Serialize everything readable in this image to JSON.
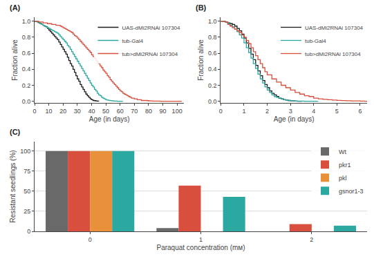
{
  "chart_data": [
    {
      "type": "step",
      "title": "(A)",
      "xlabel": "Age (in days)",
      "ylabel": "Fraction alive",
      "xlim": [
        0,
        105
      ],
      "ylim": [
        -0.02,
        1.05
      ],
      "xticks": [
        0,
        10,
        20,
        30,
        40,
        50,
        60,
        70,
        80,
        90,
        100
      ],
      "yticks": [
        {
          "value": 0,
          "label": "0.0"
        },
        0.2,
        0.4,
        0.6,
        0.8,
        {
          "value": 1,
          "label": "1.0"
        }
      ],
      "grid": false,
      "legend": "upper right",
      "series": [
        {
          "name": "UAS-dMi2RNAi 107304",
          "color": "#1a1a1a",
          "x": [
            0,
            1,
            2,
            3,
            4,
            5,
            6,
            7,
            8,
            9,
            10,
            11,
            12,
            13,
            14,
            15,
            16,
            17,
            18,
            19,
            20,
            21,
            22,
            23,
            24,
            25,
            26,
            27,
            28,
            29,
            30,
            31,
            32,
            33,
            34,
            35,
            36,
            37,
            38,
            39,
            40,
            41,
            42,
            43,
            44,
            45
          ],
          "values": [
            1.0,
            1.0,
            0.99,
            0.98,
            0.97,
            0.96,
            0.95,
            0.94,
            0.93,
            0.91,
            0.89,
            0.87,
            0.85,
            0.83,
            0.81,
            0.79,
            0.77,
            0.74,
            0.71,
            0.68,
            0.65,
            0.62,
            0.59,
            0.55,
            0.51,
            0.47,
            0.44,
            0.4,
            0.36,
            0.32,
            0.28,
            0.25,
            0.21,
            0.18,
            0.15,
            0.12,
            0.09,
            0.07,
            0.05,
            0.03,
            0.02,
            0.01,
            0.008,
            0.004,
            0.002,
            0.0
          ]
        },
        {
          "name": "tub-Gal4",
          "color": "#2ba8a0",
          "x": [
            0,
            1,
            2,
            3,
            4,
            5,
            6,
            7,
            8,
            9,
            10,
            11,
            12,
            13,
            14,
            15,
            16,
            17,
            18,
            19,
            20,
            21,
            22,
            23,
            24,
            25,
            26,
            27,
            28,
            29,
            30,
            31,
            32,
            33,
            34,
            35,
            36,
            37,
            38,
            39,
            40,
            41,
            42,
            43,
            44,
            45,
            46,
            47,
            48,
            49,
            50,
            51,
            52,
            53,
            54,
            55,
            56,
            57,
            58,
            59,
            60,
            61,
            62
          ],
          "values": [
            1.0,
            1.0,
            0.99,
            0.98,
            0.97,
            0.96,
            0.95,
            0.94,
            0.93,
            0.92,
            0.91,
            0.9,
            0.89,
            0.88,
            0.87,
            0.86,
            0.85,
            0.83,
            0.81,
            0.79,
            0.77,
            0.75,
            0.73,
            0.7,
            0.68,
            0.65,
            0.62,
            0.59,
            0.56,
            0.53,
            0.5,
            0.47,
            0.44,
            0.41,
            0.38,
            0.35,
            0.32,
            0.29,
            0.26,
            0.23,
            0.2,
            0.18,
            0.15,
            0.13,
            0.1,
            0.08,
            0.07,
            0.05,
            0.04,
            0.03,
            0.02,
            0.015,
            0.012,
            0.009,
            0.007,
            0.005,
            0.003,
            0.002,
            0.001,
            0.001,
            0.0,
            0.0,
            0.0
          ]
        },
        {
          "name": "tub>dMi2RNAi 107304",
          "color": "#d94f3d",
          "x": [
            0,
            1,
            2,
            3,
            4,
            5,
            6,
            7,
            8,
            9,
            10,
            11,
            12,
            13,
            14,
            15,
            16,
            17,
            18,
            19,
            20,
            21,
            22,
            23,
            24,
            25,
            26,
            27,
            28,
            29,
            30,
            31,
            32,
            33,
            34,
            35,
            36,
            37,
            38,
            39,
            40,
            41,
            42,
            43,
            44,
            45,
            46,
            47,
            48,
            49,
            50,
            51,
            52,
            53,
            54,
            55,
            56,
            57,
            58,
            59,
            60,
            61,
            62,
            63,
            64,
            65,
            66,
            67,
            68,
            69,
            70,
            71,
            72,
            73,
            74,
            75,
            76,
            77,
            78,
            79,
            80,
            81,
            82,
            83,
            84,
            85,
            86,
            87,
            88,
            89,
            90,
            91,
            92,
            93,
            94,
            95,
            96,
            97,
            98,
            99,
            100,
            101,
            102,
            103
          ],
          "values": [
            1.0,
            1.0,
            1.0,
            0.99,
            0.99,
            0.99,
            0.98,
            0.98,
            0.98,
            0.97,
            0.97,
            0.97,
            0.96,
            0.96,
            0.96,
            0.95,
            0.95,
            0.95,
            0.94,
            0.93,
            0.92,
            0.91,
            0.9,
            0.89,
            0.88,
            0.87,
            0.86,
            0.84,
            0.82,
            0.81,
            0.79,
            0.77,
            0.75,
            0.73,
            0.71,
            0.69,
            0.67,
            0.65,
            0.63,
            0.61,
            0.58,
            0.56,
            0.54,
            0.51,
            0.49,
            0.47,
            0.44,
            0.42,
            0.39,
            0.37,
            0.35,
            0.32,
            0.3,
            0.27,
            0.25,
            0.23,
            0.21,
            0.19,
            0.17,
            0.15,
            0.13,
            0.12,
            0.1,
            0.09,
            0.08,
            0.07,
            0.06,
            0.05,
            0.04,
            0.04,
            0.03,
            0.03,
            0.02,
            0.02,
            0.02,
            0.01,
            0.01,
            0.01,
            0.01,
            0.008,
            0.006,
            0.005,
            0.004,
            0.003,
            0.003,
            0.002,
            0.002,
            0.002,
            0.001,
            0.001,
            0.001,
            0.001,
            0.001,
            0.001,
            0.001,
            0.001,
            0.001,
            0.001,
            0.001,
            0.001,
            0.001,
            0.001,
            0.001,
            0.0
          ]
        }
      ]
    },
    {
      "type": "step",
      "title": "(B)",
      "xlabel": "Age (in days)",
      "ylabel": "Fraction alive",
      "xlim": [
        0,
        6.3
      ],
      "ylim": [
        -0.02,
        1.05
      ],
      "xticks": [
        0,
        1,
        2,
        3,
        4,
        5,
        6
      ],
      "yticks": [
        {
          "value": 0,
          "label": "0.0"
        },
        0.2,
        0.4,
        0.6,
        0.8,
        {
          "value": 1,
          "label": "1.0"
        }
      ],
      "grid": false,
      "legend": "upper right",
      "series": [
        {
          "name": "UAS-dMi2RNAi 107304",
          "color": "#1a1a1a",
          "x": [
            0,
            0.1,
            0.2,
            0.3,
            0.4,
            0.5,
            0.6,
            0.7,
            0.8,
            0.9,
            1.0,
            1.1,
            1.2,
            1.3,
            1.4,
            1.5,
            1.6,
            1.7,
            1.8,
            1.9,
            2.0,
            2.1,
            2.2,
            2.3,
            2.4,
            2.5,
            2.6,
            2.7,
            2.8,
            2.9,
            3.0,
            3.1,
            3.2,
            3.3,
            3.5
          ],
          "values": [
            1.0,
            1.0,
            0.99,
            0.98,
            0.97,
            0.96,
            0.94,
            0.91,
            0.88,
            0.84,
            0.79,
            0.73,
            0.66,
            0.59,
            0.52,
            0.45,
            0.38,
            0.32,
            0.26,
            0.21,
            0.17,
            0.13,
            0.1,
            0.08,
            0.06,
            0.04,
            0.03,
            0.02,
            0.015,
            0.01,
            0.007,
            0.005,
            0.003,
            0.001,
            0.0
          ]
        },
        {
          "name": "tub-Gal4",
          "color": "#2ba8a0",
          "x": [
            0,
            0.1,
            0.2,
            0.3,
            0.4,
            0.5,
            0.6,
            0.7,
            0.8,
            0.9,
            1.0,
            1.1,
            1.2,
            1.3,
            1.4,
            1.5,
            1.6,
            1.7,
            1.8,
            1.9,
            2.0,
            2.1,
            2.2,
            2.3,
            2.4,
            2.5,
            2.6,
            2.7,
            2.8,
            2.9,
            3.0,
            3.1,
            3.2,
            3.4,
            3.6,
            3.8,
            4.0,
            4.1,
            4.2
          ],
          "values": [
            1.0,
            1.0,
            0.99,
            0.97,
            0.95,
            0.93,
            0.9,
            0.87,
            0.83,
            0.79,
            0.73,
            0.67,
            0.61,
            0.54,
            0.47,
            0.41,
            0.34,
            0.28,
            0.23,
            0.18,
            0.14,
            0.11,
            0.08,
            0.06,
            0.05,
            0.04,
            0.03,
            0.02,
            0.015,
            0.01,
            0.008,
            0.005,
            0.003,
            0.002,
            0.001,
            0.001,
            0.001,
            0.0,
            0.0
          ]
        },
        {
          "name": "tub>dMi2RNAi 107304",
          "color": "#d94f3d",
          "x": [
            0,
            0.1,
            0.2,
            0.3,
            0.4,
            0.5,
            0.6,
            0.7,
            0.8,
            0.9,
            1.0,
            1.1,
            1.2,
            1.3,
            1.4,
            1.5,
            1.6,
            1.7,
            1.8,
            1.9,
            2.0,
            2.2,
            2.4,
            2.6,
            2.8,
            3.0,
            3.2,
            3.4,
            3.6,
            3.8,
            4.0,
            4.2,
            4.4,
            4.6,
            4.8,
            5.0,
            5.2,
            5.4,
            5.6,
            5.8,
            6.0,
            6.1,
            6.2,
            6.3
          ],
          "values": [
            1.0,
            1.0,
            0.99,
            0.96,
            0.94,
            0.92,
            0.9,
            0.88,
            0.86,
            0.83,
            0.8,
            0.76,
            0.72,
            0.67,
            0.62,
            0.57,
            0.52,
            0.47,
            0.42,
            0.37,
            0.33,
            0.28,
            0.24,
            0.2,
            0.17,
            0.14,
            0.11,
            0.09,
            0.07,
            0.06,
            0.04,
            0.03,
            0.025,
            0.02,
            0.015,
            0.012,
            0.009,
            0.007,
            0.005,
            0.004,
            0.003,
            0.002,
            0.001,
            0.0
          ]
        }
      ]
    },
    {
      "type": "bar",
      "title": "(C)",
      "xlabel": "Paraquat concentration (mм)",
      "ylabel": "Resistant seedlings (%)",
      "categories": [
        "0",
        "1",
        "2"
      ],
      "ylim": [
        0,
        112
      ],
      "yticks": [
        0,
        25,
        50,
        75,
        100
      ],
      "grid": true,
      "legend": "upper right",
      "series": [
        {
          "name": "Wt",
          "color": "#696969",
          "values": [
            100,
            4,
            0
          ]
        },
        {
          "name": "pkr1",
          "color": "#d94f3d",
          "values": [
            100,
            57,
            9
          ]
        },
        {
          "name": "pkl",
          "color": "#e8913a",
          "values": [
            100,
            0,
            0
          ]
        },
        {
          "name": "gsnor1-3",
          "color": "#2ba8a0",
          "values": [
            100,
            43,
            7
          ]
        }
      ]
    }
  ]
}
